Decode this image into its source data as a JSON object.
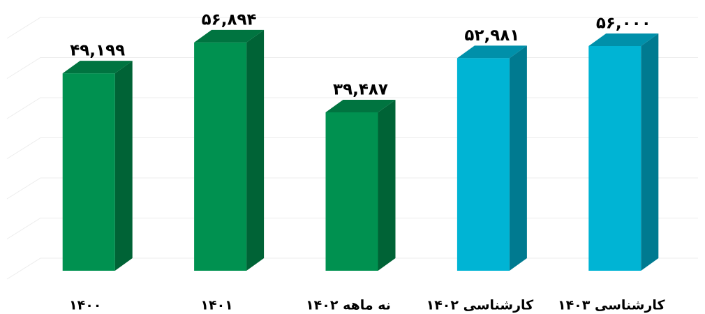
{
  "chart_data": {
    "type": "bar3d",
    "categories": [
      "۱۴۰۰",
      "۱۴۰۱",
      "نه ماهه ۱۴۰۲",
      "کارشناسی ۱۴۰۲",
      "کارشناسی ۱۴۰۳"
    ],
    "values": [
      49199,
      56894,
      39487,
      52981,
      56000
    ],
    "value_labels": [
      "۴۹,۱۹۹",
      "۵۶,۸۹۴",
      "۳۹,۴۸۷",
      "۵۲,۹۸۱",
      "۵۶,۰۰۰"
    ],
    "colors": [
      "#009150",
      "#009150",
      "#009150",
      "#00b4d4",
      "#00b4d4"
    ],
    "ylim": [
      0,
      60000
    ],
    "yticks": [
      0,
      10000,
      20000,
      30000,
      40000,
      50000,
      60000
    ],
    "grid": true
  }
}
